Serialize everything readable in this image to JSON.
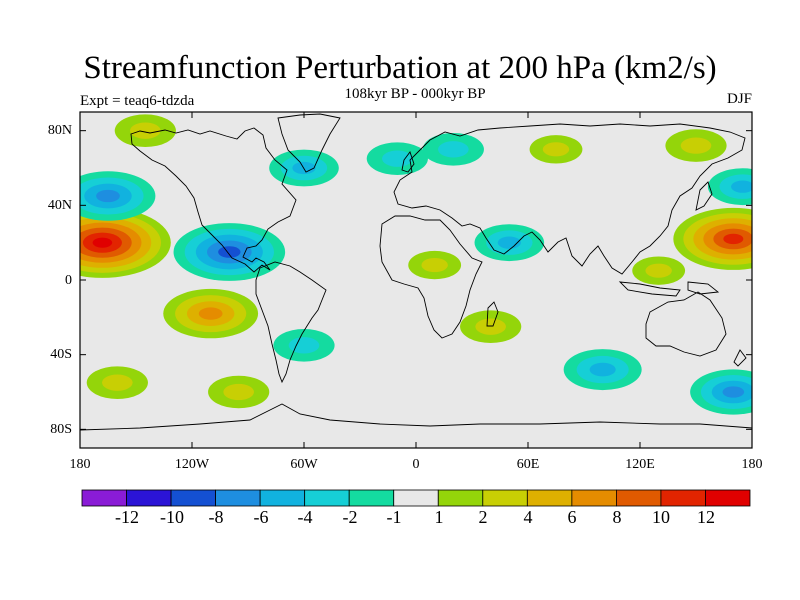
{
  "title": "Streamfunction Perturbation at 200 hPa (km2/s)",
  "subtitle": "108kyr BP - 000kyr BP",
  "left_label": "Expt = teaq6-tdzda",
  "right_label": "DJF",
  "lat_labels": [
    "80N",
    "40N",
    "0",
    "40S",
    "80S"
  ],
  "lon_labels": [
    "180",
    "120W",
    "60W",
    "0",
    "60E",
    "120E",
    "180"
  ],
  "colorbar": {
    "labels": [
      "-12",
      "-10",
      "-8",
      "-6",
      "-4",
      "-2",
      "-1",
      "1",
      "2",
      "4",
      "6",
      "8",
      "10",
      "12"
    ],
    "colors": [
      "#8a1cd6",
      "#2b14d6",
      "#1450d2",
      "#1e8ee0",
      "#11b2df",
      "#16cfd6",
      "#14dba0",
      "#e8e8e8",
      "#94d50a",
      "#c8cf04",
      "#deb000",
      "#e58c00",
      "#e05a00",
      "#e22400",
      "#e00000"
    ]
  },
  "chart_data": {
    "type": "heatmap",
    "title": "Streamfunction Perturbation at 200 hPa (km2/s)",
    "subtitle": "108kyr BP - 000kyr BP",
    "projection": "cylindrical equidistant",
    "x_range": [
      -180,
      180
    ],
    "y_range": [
      -90,
      90
    ],
    "levels": [
      -12,
      -10,
      -8,
      -6,
      -4,
      -2,
      -1,
      1,
      2,
      4,
      6,
      8,
      10,
      12
    ],
    "features": [
      {
        "lon": -168,
        "lat": 20,
        "value": 12
      },
      {
        "lon": 170,
        "lat": 22,
        "value": 10
      },
      {
        "lon": -165,
        "lat": 45,
        "value": -7
      },
      {
        "lon": 175,
        "lat": 50,
        "value": -4
      },
      {
        "lon": -100,
        "lat": 15,
        "value": -9
      },
      {
        "lon": -110,
        "lat": -18,
        "value": 7
      },
      {
        "lon": -60,
        "lat": 60,
        "value": -4
      },
      {
        "lon": -10,
        "lat": 65,
        "value": -3
      },
      {
        "lon": 20,
        "lat": 70,
        "value": -3
      },
      {
        "lon": 75,
        "lat": 70,
        "value": 2
      },
      {
        "lon": 50,
        "lat": 20,
        "value": -4
      },
      {
        "lon": 10,
        "lat": 8,
        "value": 2
      },
      {
        "lon": 40,
        "lat": -25,
        "value": 3
      },
      {
        "lon": 100,
        "lat": -48,
        "value": -5
      },
      {
        "lon": 170,
        "lat": -60,
        "value": -6
      },
      {
        "lon": -95,
        "lat": -60,
        "value": 3
      },
      {
        "lon": -160,
        "lat": -55,
        "value": 3
      },
      {
        "lon": -60,
        "lat": -35,
        "value": -3
      },
      {
        "lon": 130,
        "lat": 5,
        "value": 2
      },
      {
        "lon": -145,
        "lat": 80,
        "value": 3
      },
      {
        "lon": 150,
        "lat": 72,
        "value": 3
      }
    ]
  }
}
